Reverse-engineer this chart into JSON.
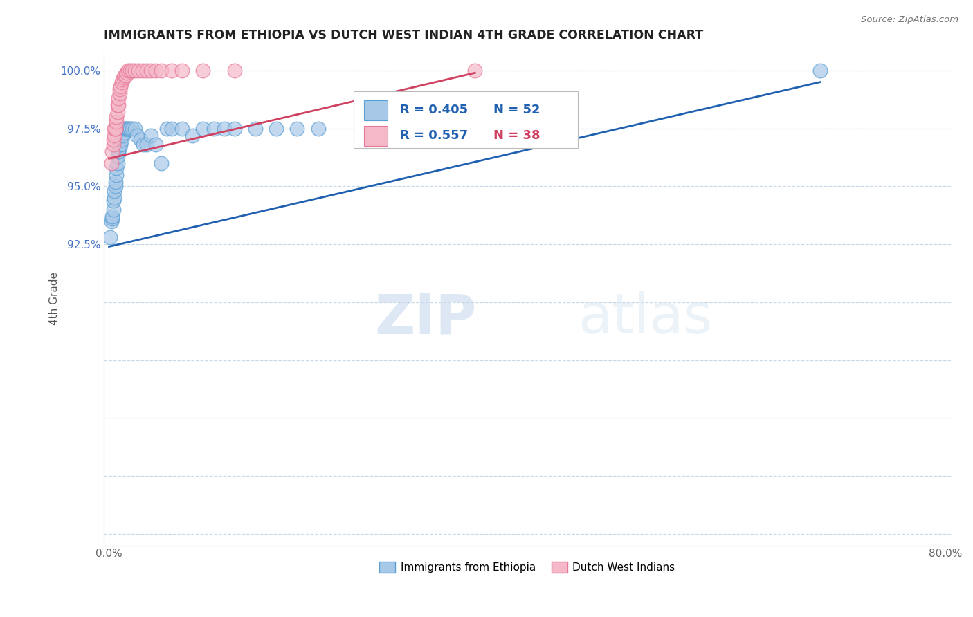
{
  "title": "IMMIGRANTS FROM ETHIOPIA VS DUTCH WEST INDIAN 4TH GRADE CORRELATION CHART",
  "source": "Source: ZipAtlas.com",
  "xlabel": "",
  "ylabel": "4th Grade",
  "xlim": [
    -0.005,
    0.805
  ],
  "ylim": [
    0.795,
    1.008
  ],
  "xticks": [
    0.0,
    0.1,
    0.2,
    0.3,
    0.4,
    0.5,
    0.6,
    0.7,
    0.8
  ],
  "xtick_labels": [
    "0.0%",
    "",
    "",
    "",
    "",
    "",
    "",
    "",
    "80.0%"
  ],
  "yticks": [
    0.8,
    0.825,
    0.85,
    0.875,
    0.9,
    0.925,
    0.95,
    0.975,
    1.0
  ],
  "ytick_labels": [
    "",
    "",
    "",
    "",
    "",
    "92.5%",
    "95.0%",
    "97.5%",
    "100.0%"
  ],
  "blue_color": "#a8c8e8",
  "pink_color": "#f4b8c8",
  "blue_edge": "#5a9fd4",
  "pink_edge": "#e87898",
  "trend_blue": "#2060b0",
  "trend_pink": "#d04060",
  "R_blue": 0.405,
  "N_blue": 52,
  "R_pink": 0.557,
  "N_pink": 38,
  "legend_label_blue": "Immigrants from Ethiopia",
  "legend_label_pink": "Dutch West Indians",
  "watermark_zip": "ZIP",
  "watermark_atlas": "atlas",
  "blue_x": [
    0.001,
    0.002,
    0.003,
    0.003,
    0.004,
    0.004,
    0.005,
    0.005,
    0.006,
    0.006,
    0.007,
    0.007,
    0.008,
    0.008,
    0.009,
    0.009,
    0.01,
    0.01,
    0.011,
    0.012,
    0.013,
    0.014,
    0.015,
    0.016,
    0.017,
    0.018,
    0.019,
    0.02,
    0.022,
    0.025,
    0.027,
    0.03,
    0.033,
    0.036,
    0.04,
    0.045,
    0.05,
    0.055,
    0.06,
    0.07,
    0.08,
    0.09,
    0.1,
    0.11,
    0.12,
    0.14,
    0.16,
    0.18,
    0.2,
    0.25,
    0.35,
    0.68
  ],
  "blue_y": [
    0.928,
    0.935,
    0.936,
    0.937,
    0.94,
    0.944,
    0.945,
    0.948,
    0.95,
    0.952,
    0.955,
    0.958,
    0.96,
    0.963,
    0.965,
    0.965,
    0.967,
    0.968,
    0.968,
    0.97,
    0.972,
    0.973,
    0.975,
    0.975,
    0.975,
    0.975,
    0.975,
    0.975,
    0.975,
    0.975,
    0.972,
    0.97,
    0.968,
    0.968,
    0.972,
    0.968,
    0.96,
    0.975,
    0.975,
    0.975,
    0.972,
    0.975,
    0.975,
    0.975,
    0.975,
    0.975,
    0.975,
    0.975,
    0.975,
    0.975,
    0.975,
    1.0
  ],
  "pink_x": [
    0.002,
    0.003,
    0.004,
    0.004,
    0.005,
    0.005,
    0.006,
    0.006,
    0.007,
    0.007,
    0.008,
    0.008,
    0.009,
    0.009,
    0.01,
    0.01,
    0.011,
    0.012,
    0.013,
    0.014,
    0.015,
    0.016,
    0.017,
    0.018,
    0.02,
    0.022,
    0.025,
    0.028,
    0.032,
    0.036,
    0.04,
    0.045,
    0.05,
    0.06,
    0.07,
    0.09,
    0.12,
    0.35
  ],
  "pink_y": [
    0.96,
    0.965,
    0.968,
    0.97,
    0.972,
    0.975,
    0.975,
    0.975,
    0.978,
    0.98,
    0.982,
    0.985,
    0.985,
    0.988,
    0.99,
    0.992,
    0.993,
    0.995,
    0.996,
    0.997,
    0.998,
    0.998,
    0.999,
    1.0,
    1.0,
    1.0,
    1.0,
    1.0,
    1.0,
    1.0,
    1.0,
    1.0,
    1.0,
    1.0,
    1.0,
    1.0,
    1.0,
    1.0
  ]
}
